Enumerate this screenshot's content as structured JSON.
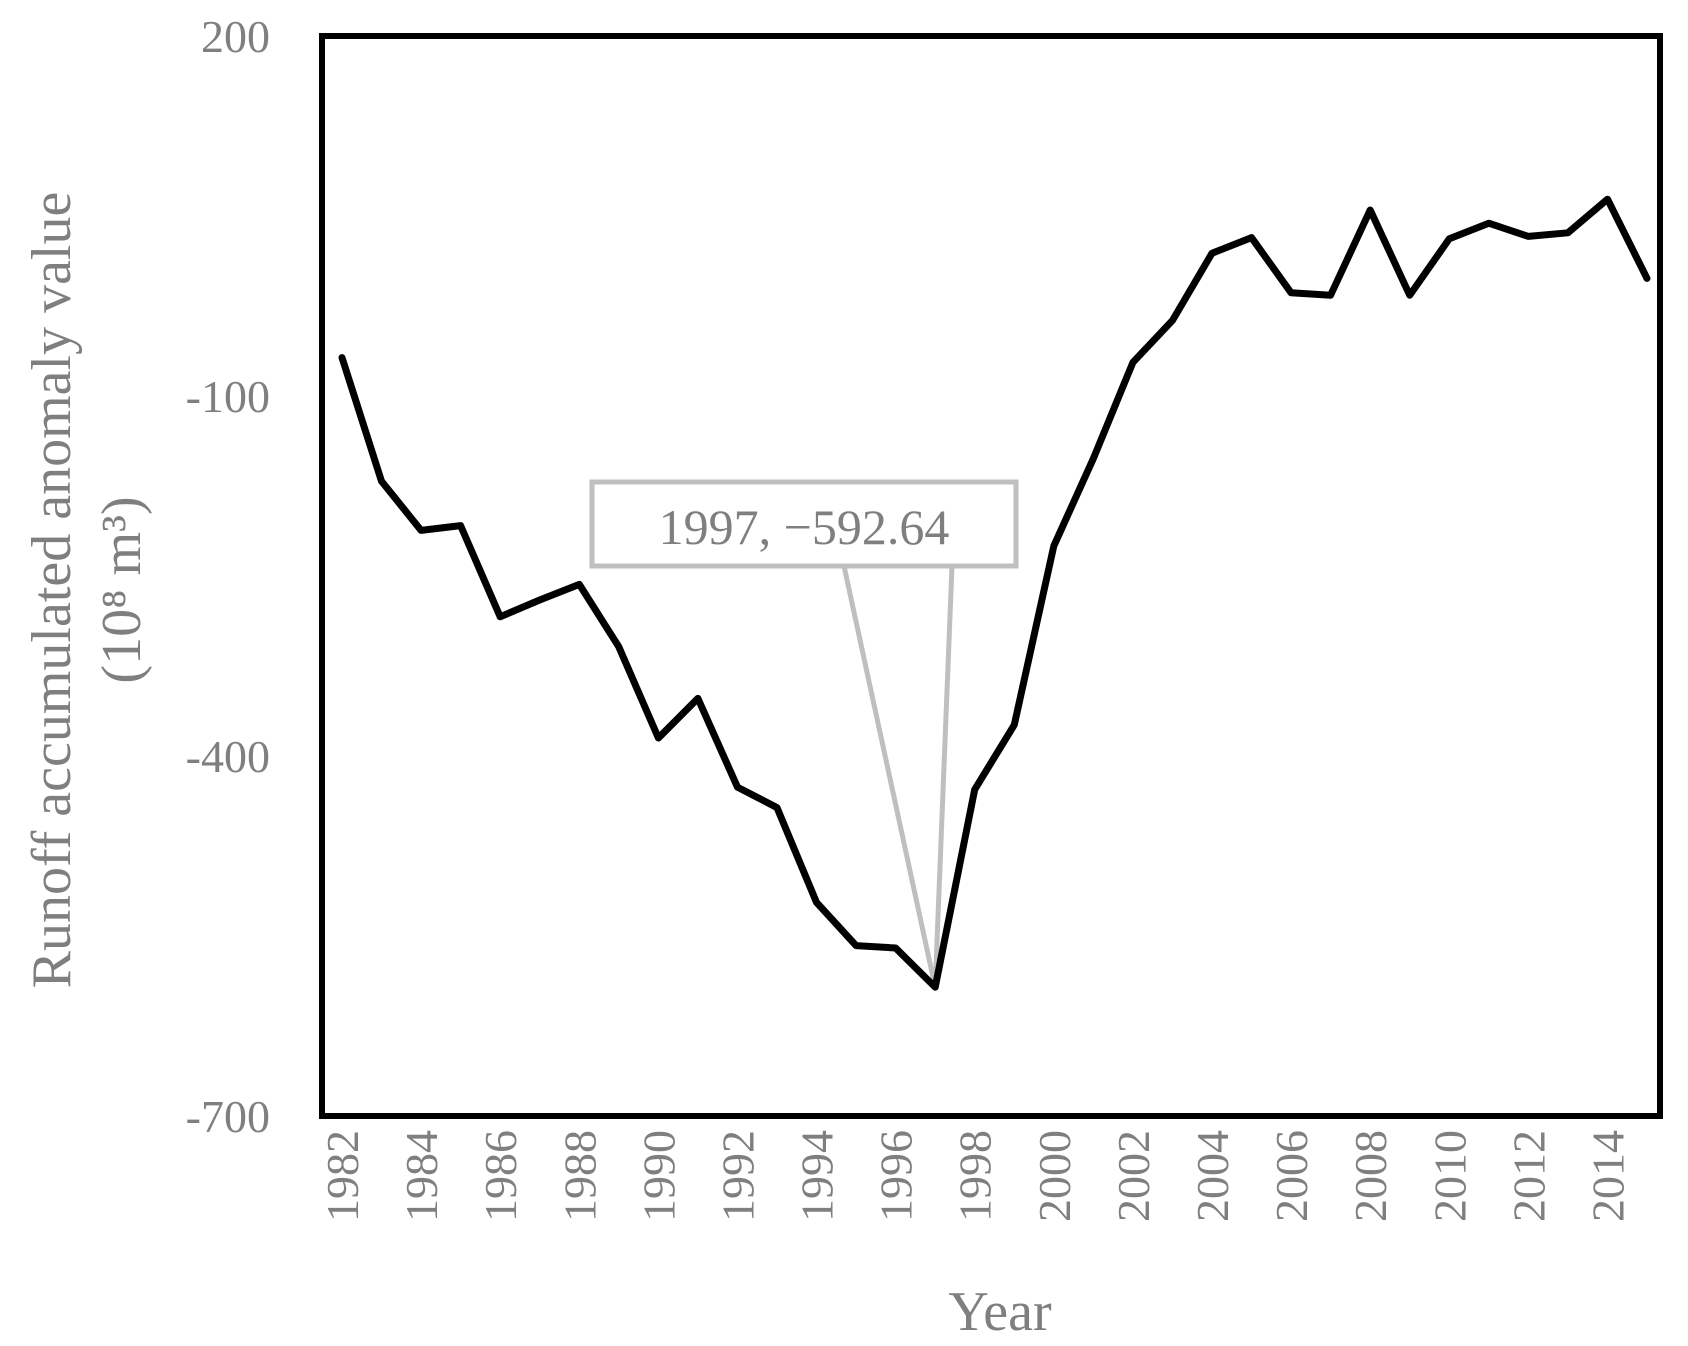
{
  "chart_data": {
    "type": "line",
    "xlabel": "Year",
    "ylabel": "Runoff accumulated anomaly value",
    "ylabel_unit": "(10⁸ m³)",
    "ylim": [
      -700,
      200
    ],
    "y_ticks": [
      "200",
      "-100",
      "-400",
      "-700"
    ],
    "x_ticks": [
      "1982",
      "1984",
      "1986",
      "1988",
      "1990",
      "1992",
      "1994",
      "1996",
      "1998",
      "2000",
      "2002",
      "2004",
      "2006",
      "2008",
      "2010",
      "2012",
      "2014"
    ],
    "grid": false,
    "legend": "none",
    "line_color": "#000000",
    "x": [
      1982,
      1983,
      1984,
      1985,
      1986,
      1987,
      1988,
      1989,
      1990,
      1991,
      1992,
      1993,
      1994,
      1995,
      1996,
      1997,
      1998,
      1999,
      2000,
      2001,
      2002,
      2003,
      2004,
      2005,
      2006,
      2007,
      2008,
      2009,
      2010,
      2011,
      2012,
      2013,
      2014,
      2015
    ],
    "series": [
      {
        "values": [
          -68,
          -171,
          -212,
          -208,
          -284,
          -270,
          -257,
          -309,
          -385,
          -352,
          -426,
          -443,
          -522,
          -558,
          -560,
          -592.64,
          -428,
          -374,
          -225,
          -152,
          -72,
          -37,
          19,
          32,
          -14,
          -16,
          55,
          -16,
          31,
          44,
          33,
          36,
          64,
          -2
        ]
      }
    ],
    "annotation": {
      "text": "1997, −592.64",
      "x": 1997,
      "y": -592.64
    }
  }
}
